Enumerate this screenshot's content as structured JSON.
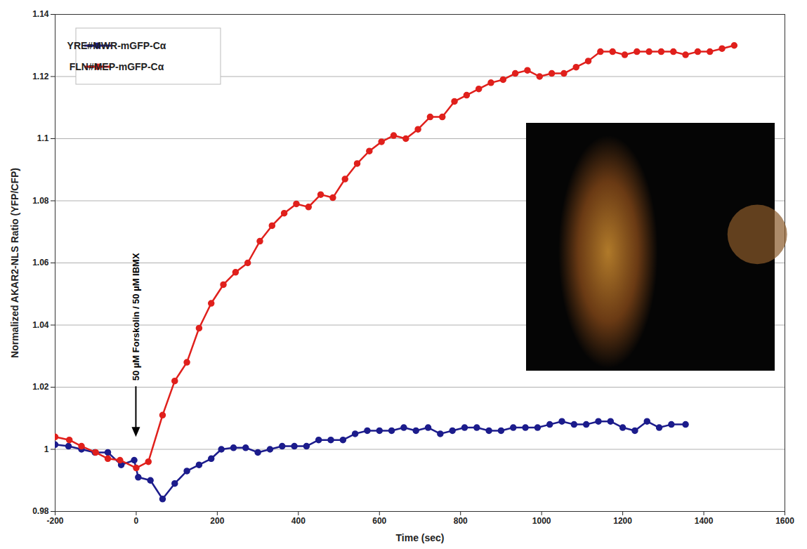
{
  "chart_data": {
    "type": "line",
    "x_label": "Time (sec)",
    "y_label": "Normalized AKAR2-NLS Ratio (YFP/CFP)",
    "xlim": [
      -200,
      1600
    ],
    "xticks": [
      -200,
      0,
      200,
      400,
      600,
      800,
      1000,
      1200,
      1400,
      1600
    ],
    "ylim": [
      0.98,
      1.14
    ],
    "yticks": [
      0.98,
      1,
      1.02,
      1.04,
      1.06,
      1.08,
      1.1,
      1.12,
      1.14
    ],
    "grid": "y",
    "legend": "top-left",
    "annotations": [
      {
        "text": "50 µM Forskolin / 50 µM IBMX",
        "x": 0,
        "y": 1.003
      }
    ],
    "series": [
      {
        "name": "YRE#MWR-mGFP-Cα",
        "color": "#1c1c8c",
        "marker": "circle",
        "x": [
          -200,
          -167,
          -135,
          -102,
          -70,
          -37,
          -5,
          5,
          35,
          65,
          95,
          125,
          155,
          185,
          210,
          240,
          270,
          300,
          330,
          360,
          390,
          420,
          450,
          480,
          510,
          540,
          570,
          600,
          630,
          660,
          690,
          720,
          750,
          780,
          810,
          840,
          870,
          900,
          930,
          960,
          990,
          1020,
          1050,
          1080,
          1110,
          1140,
          1170,
          1200,
          1230,
          1260,
          1290,
          1320,
          1355
        ],
        "values": [
          1.0015,
          1.001,
          1,
          0.999,
          0.999,
          0.995,
          0.9965,
          0.991,
          0.99,
          0.984,
          0.989,
          0.993,
          0.995,
          0.997,
          1,
          1.0005,
          1.0005,
          0.999,
          1,
          1.001,
          1.001,
          1.001,
          1.003,
          1.003,
          1.003,
          1.005,
          1.006,
          1.006,
          1.006,
          1.007,
          1.006,
          1.007,
          1.005,
          1.006,
          1.007,
          1.007,
          1.006,
          1.006,
          1.007,
          1.007,
          1.007,
          1.008,
          1.009,
          1.008,
          1.008,
          1.009,
          1.009,
          1.007,
          1.006,
          1.009,
          1.007,
          1.008,
          1.008
        ]
      },
      {
        "name": "FLN#MEP-mGFP-Cα",
        "color": "#e0201c",
        "marker": "circle",
        "x": [
          -200,
          -165,
          -135,
          -100,
          -70,
          -40,
          0,
          30,
          65,
          95,
          125,
          155,
          185,
          215,
          245,
          275,
          305,
          335,
          365,
          395,
          425,
          455,
          485,
          515,
          545,
          575,
          605,
          635,
          665,
          695,
          725,
          755,
          785,
          815,
          845,
          875,
          905,
          935,
          965,
          995,
          1025,
          1055,
          1085,
          1115,
          1145,
          1175,
          1205,
          1235,
          1265,
          1295,
          1325,
          1355,
          1385,
          1415,
          1445,
          1475
        ],
        "values": [
          1.004,
          1.003,
          1.001,
          0.999,
          0.997,
          0.9965,
          0.994,
          0.996,
          1.011,
          1.022,
          1.028,
          1.039,
          1.047,
          1.053,
          1.057,
          1.06,
          1.067,
          1.072,
          1.076,
          1.079,
          1.078,
          1.082,
          1.081,
          1.087,
          1.092,
          1.096,
          1.099,
          1.101,
          1.1,
          1.103,
          1.107,
          1.107,
          1.112,
          1.114,
          1.116,
          1.118,
          1.119,
          1.121,
          1.122,
          1.12,
          1.121,
          1.121,
          1.123,
          1.125,
          1.128,
          1.128,
          1.127,
          1.128,
          1.128,
          1.128,
          1.128,
          1.127,
          1.128,
          1.128,
          1.129,
          1.13
        ]
      }
    ]
  }
}
